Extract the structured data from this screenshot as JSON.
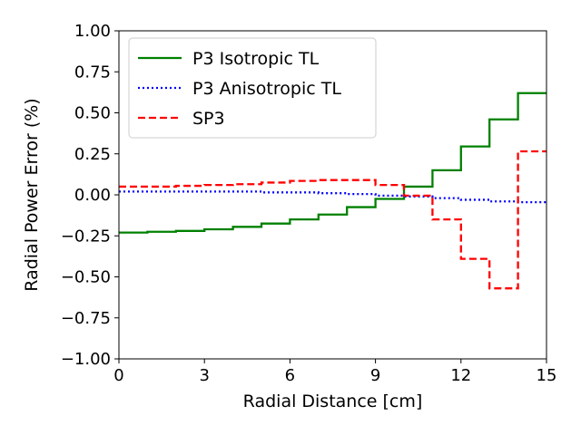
{
  "chart_data": {
    "type": "line",
    "style": "step",
    "xlabel": "Radial Distance [cm]",
    "ylabel": "Radial Power Error (%)",
    "xlim": [
      0,
      15
    ],
    "ylim": [
      -1.0,
      1.0
    ],
    "x_ticks": [
      0,
      3,
      6,
      9,
      12,
      15
    ],
    "x_tick_labels": [
      "0",
      "3",
      "6",
      "9",
      "12",
      "15"
    ],
    "y_ticks": [
      -1.0,
      -0.75,
      -0.5,
      -0.25,
      0.0,
      0.25,
      0.5,
      0.75,
      1.0
    ],
    "y_tick_labels": [
      "−1.00",
      "−0.75",
      "−0.50",
      "−0.25",
      "0.00",
      "0.25",
      "0.50",
      "0.75",
      "1.00"
    ],
    "grid": false,
    "legend_position": "top-left",
    "x_edges": [
      0,
      1,
      2,
      3,
      4,
      5,
      6,
      7,
      8,
      9,
      10,
      11,
      12,
      13,
      14,
      15
    ],
    "series": [
      {
        "name": "P3 Isotropic TL",
        "color": "#008000",
        "dash": "solid",
        "values": [
          -0.23,
          -0.225,
          -0.22,
          -0.21,
          -0.195,
          -0.175,
          -0.15,
          -0.12,
          -0.075,
          -0.025,
          0.05,
          0.15,
          0.295,
          0.46,
          0.62
        ]
      },
      {
        "name": "P3 Anisotropic TL",
        "color": "#0000ff",
        "dash": "dotted",
        "values": [
          0.02,
          0.02,
          0.02,
          0.02,
          0.02,
          0.015,
          0.015,
          0.01,
          0.005,
          -0.005,
          -0.01,
          -0.02,
          -0.03,
          -0.04,
          -0.045
        ]
      },
      {
        "name": "SP3",
        "color": "#ff0000",
        "dash": "dashed",
        "values": [
          0.05,
          0.05,
          0.055,
          0.06,
          0.065,
          0.075,
          0.085,
          0.09,
          0.09,
          0.06,
          -0.005,
          -0.15,
          -0.39,
          -0.57,
          0.265
        ]
      }
    ]
  }
}
